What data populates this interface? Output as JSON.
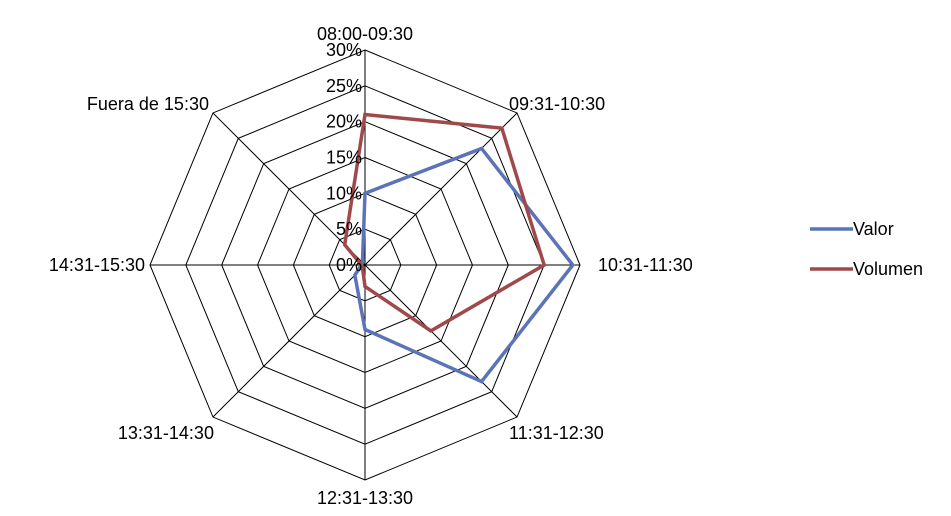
{
  "chart_data": {
    "type": "radar",
    "categories": [
      "08:00-09:30",
      "09:31-10:30",
      "10:31-11:30",
      "11:31-12:30",
      "12:31-13:30",
      "13:31-14:30",
      "14:31-15:30",
      "Fuera de 15:30"
    ],
    "r_ticks": [
      "0%",
      "5%",
      "10%",
      "15%",
      "20%",
      "25%",
      "30%"
    ],
    "r_range": [
      0,
      30
    ],
    "r_step": 5,
    "grid": true,
    "legend_position": "right",
    "series": [
      {
        "name": "Valor",
        "color": "#5b73b7",
        "values": [
          10,
          23,
          29,
          23,
          9,
          2,
          0.5,
          0.5
        ]
      },
      {
        "name": "Volumen",
        "color": "#a0494b",
        "values": [
          21,
          27,
          25,
          13,
          3,
          0.5,
          0.5,
          4
        ]
      }
    ]
  }
}
